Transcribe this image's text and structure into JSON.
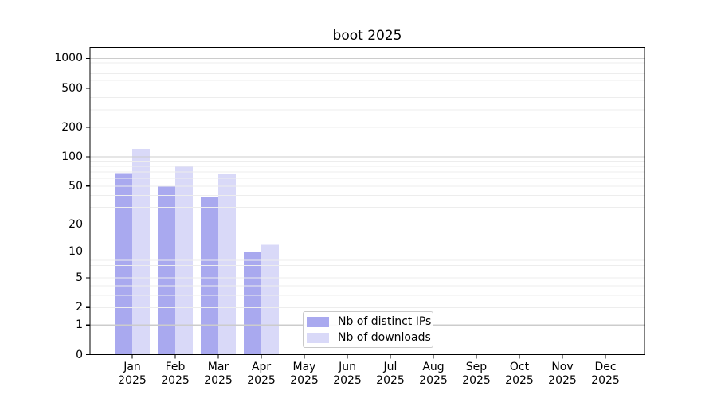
{
  "chart_data": {
    "type": "bar",
    "title": "boot 2025",
    "year": "2025",
    "categories": [
      "Jan",
      "Feb",
      "Mar",
      "Apr",
      "May",
      "Jun",
      "Jul",
      "Aug",
      "Sep",
      "Oct",
      "Nov",
      "Dec"
    ],
    "series": [
      {
        "name": "Nb of distinct IPs",
        "color": "#a9a9ef",
        "values": [
          68,
          50,
          38,
          10,
          0,
          0,
          0,
          0,
          0,
          0,
          0,
          0
        ]
      },
      {
        "name": "Nb of downloads",
        "color": "#d9d9f8",
        "values": [
          120,
          81,
          66,
          12,
          0,
          0,
          0,
          0,
          0,
          0,
          0,
          0
        ]
      }
    ],
    "yscale": "log10(1+y)",
    "yticks": [
      0,
      1,
      2,
      5,
      10,
      20,
      50,
      100,
      200,
      500,
      1000
    ],
    "ylim": [
      0,
      1290
    ],
    "xlabel": "",
    "ylabel": "",
    "grid": {
      "major_color": "#cccccc",
      "minor_color": "#ededed"
    },
    "legend_position": "lower center-left"
  }
}
